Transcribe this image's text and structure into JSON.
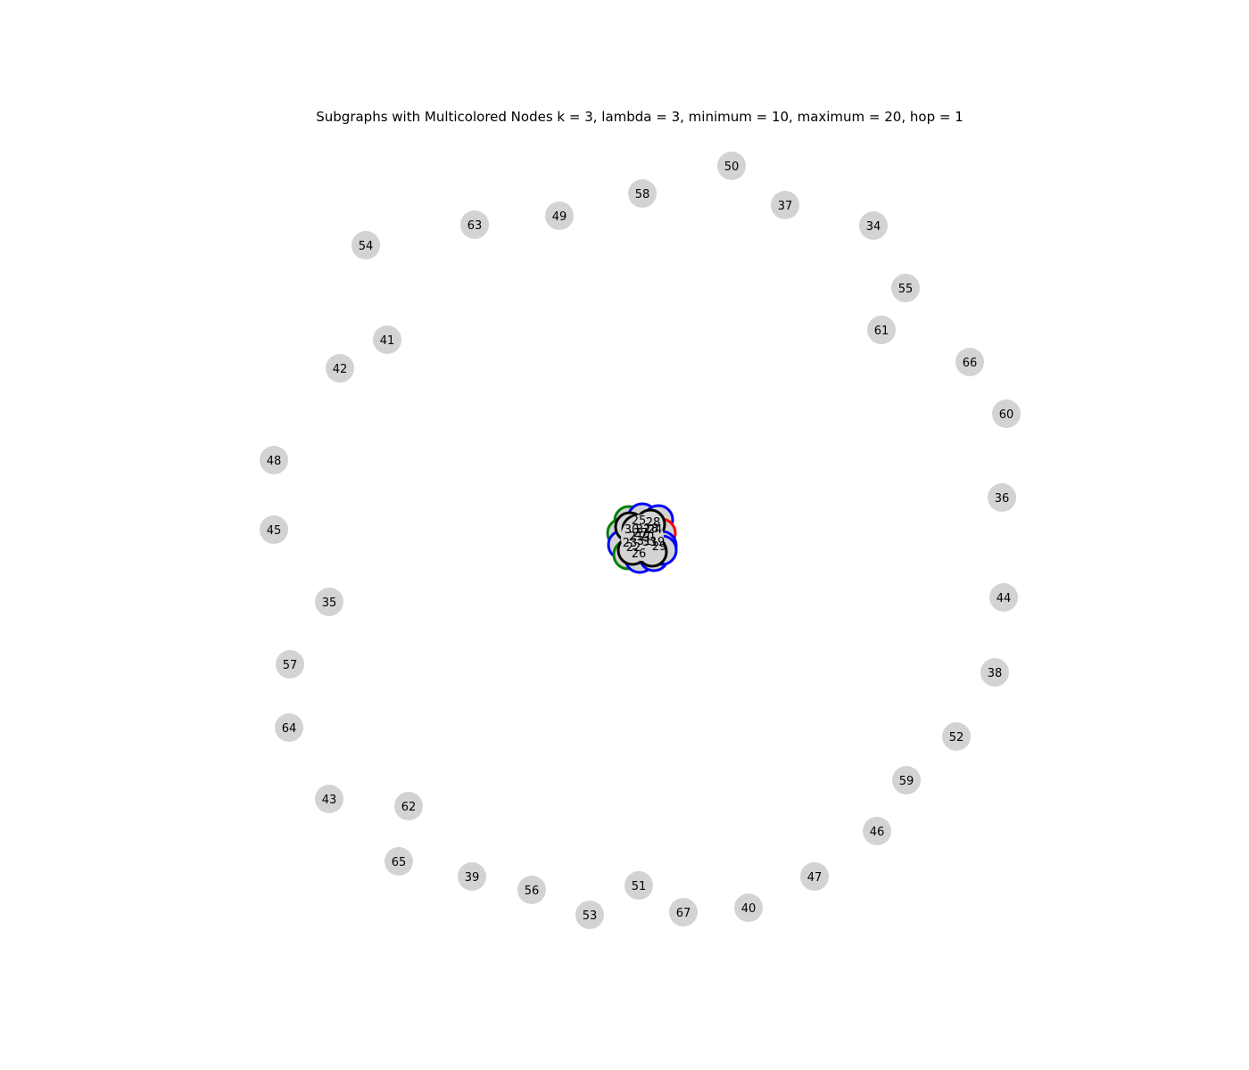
{
  "title": "Subgraphs with Multicolored Nodes k = 3, lambda = 3, minimum = 10, maximum = 20, hop = 1",
  "colors": {
    "node_fill": "#d3d3d3",
    "ring_blue": "#0000ff",
    "ring_green": "#008000",
    "ring_red": "#ff0000",
    "ring_black": "#000000",
    "text": "#000000"
  },
  "outer_nodes": [
    "50",
    "58",
    "37",
    "49",
    "63",
    "34",
    "54",
    "55",
    "61",
    "41",
    "66",
    "42",
    "60",
    "48",
    "36",
    "45",
    "44",
    "35",
    "57",
    "38",
    "64",
    "52",
    "59",
    "43",
    "62",
    "46",
    "65",
    "39",
    "47",
    "56",
    "51",
    "40",
    "67",
    "53"
  ],
  "cluster_labels": [
    "28",
    "25",
    "18",
    "24",
    "32",
    "30",
    "27",
    "29",
    "26",
    "23",
    "21",
    "20",
    "22",
    "31",
    "33",
    "19"
  ]
}
